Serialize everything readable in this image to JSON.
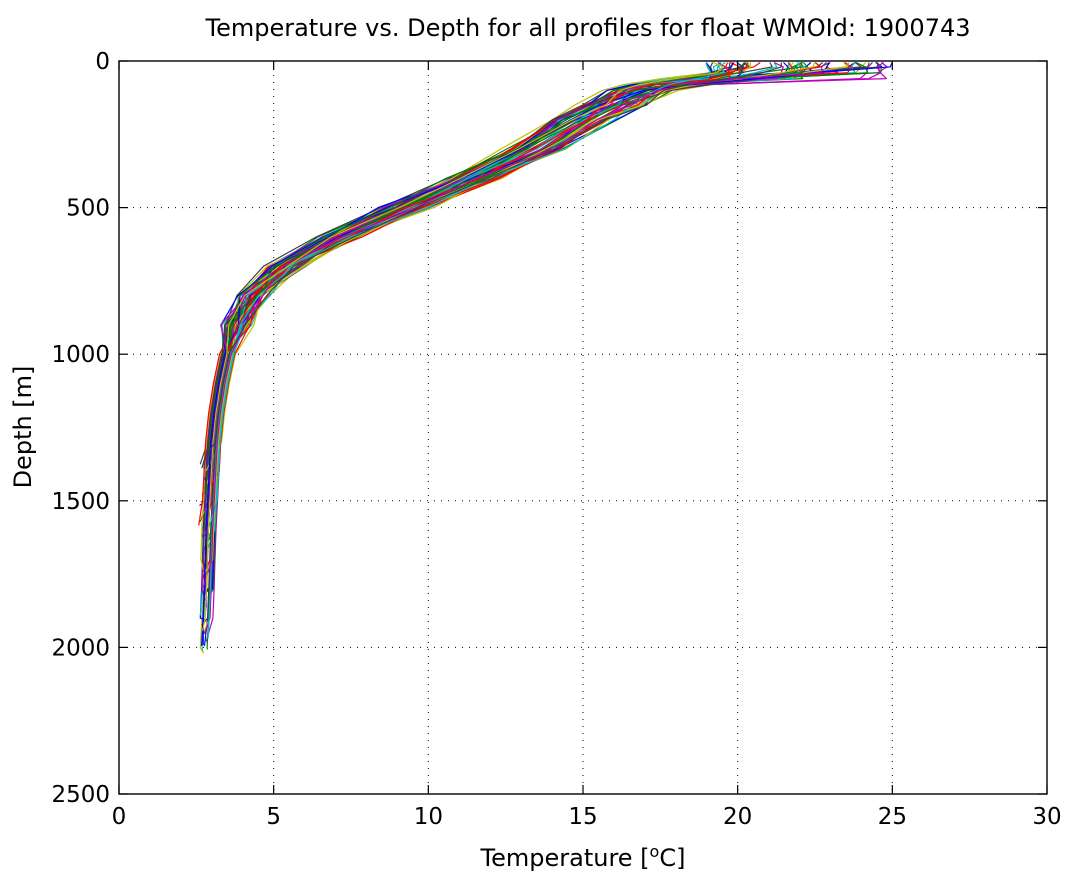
{
  "chart_data": {
    "type": "line",
    "title": "Temperature vs. Depth for all profiles for float WMOId: 1900743",
    "xlabel_prefix": "Temperature [",
    "xlabel_sup": "o",
    "xlabel_suffix": "C]",
    "ylabel": "Depth [m]",
    "xlim": [
      0,
      30
    ],
    "ylim": [
      0,
      2500
    ],
    "y_reversed": true,
    "grid": true,
    "xticks": [
      "0",
      "5",
      "10",
      "15",
      "20",
      "25",
      "30"
    ],
    "yticks": [
      "0",
      "500",
      "1000",
      "1500",
      "2000",
      "2500"
    ],
    "series_colors": [
      "#0000ff",
      "#008000",
      "#ff0000",
      "#00bfbf",
      "#bf00bf",
      "#bfbf00",
      "#404040"
    ],
    "profile_count": 63,
    "representative_profile": {
      "depth": [
        5,
        20,
        40,
        60,
        80,
        100,
        150,
        200,
        300,
        400,
        500,
        600,
        700,
        800,
        900,
        1000,
        1100,
        1200,
        1300,
        1400,
        1500,
        1600,
        1700,
        1800,
        1900,
        2000
      ],
      "temperature": [
        22.0,
        21.5,
        20.8,
        19.5,
        18.0,
        17.0,
        16.0,
        15.0,
        13.5,
        11.5,
        9.3,
        7.2,
        5.4,
        4.4,
        3.8,
        3.5,
        3.3,
        3.15,
        3.05,
        3.0,
        2.95,
        2.9,
        2.87,
        2.84,
        2.8,
        2.75
      ]
    }
  }
}
